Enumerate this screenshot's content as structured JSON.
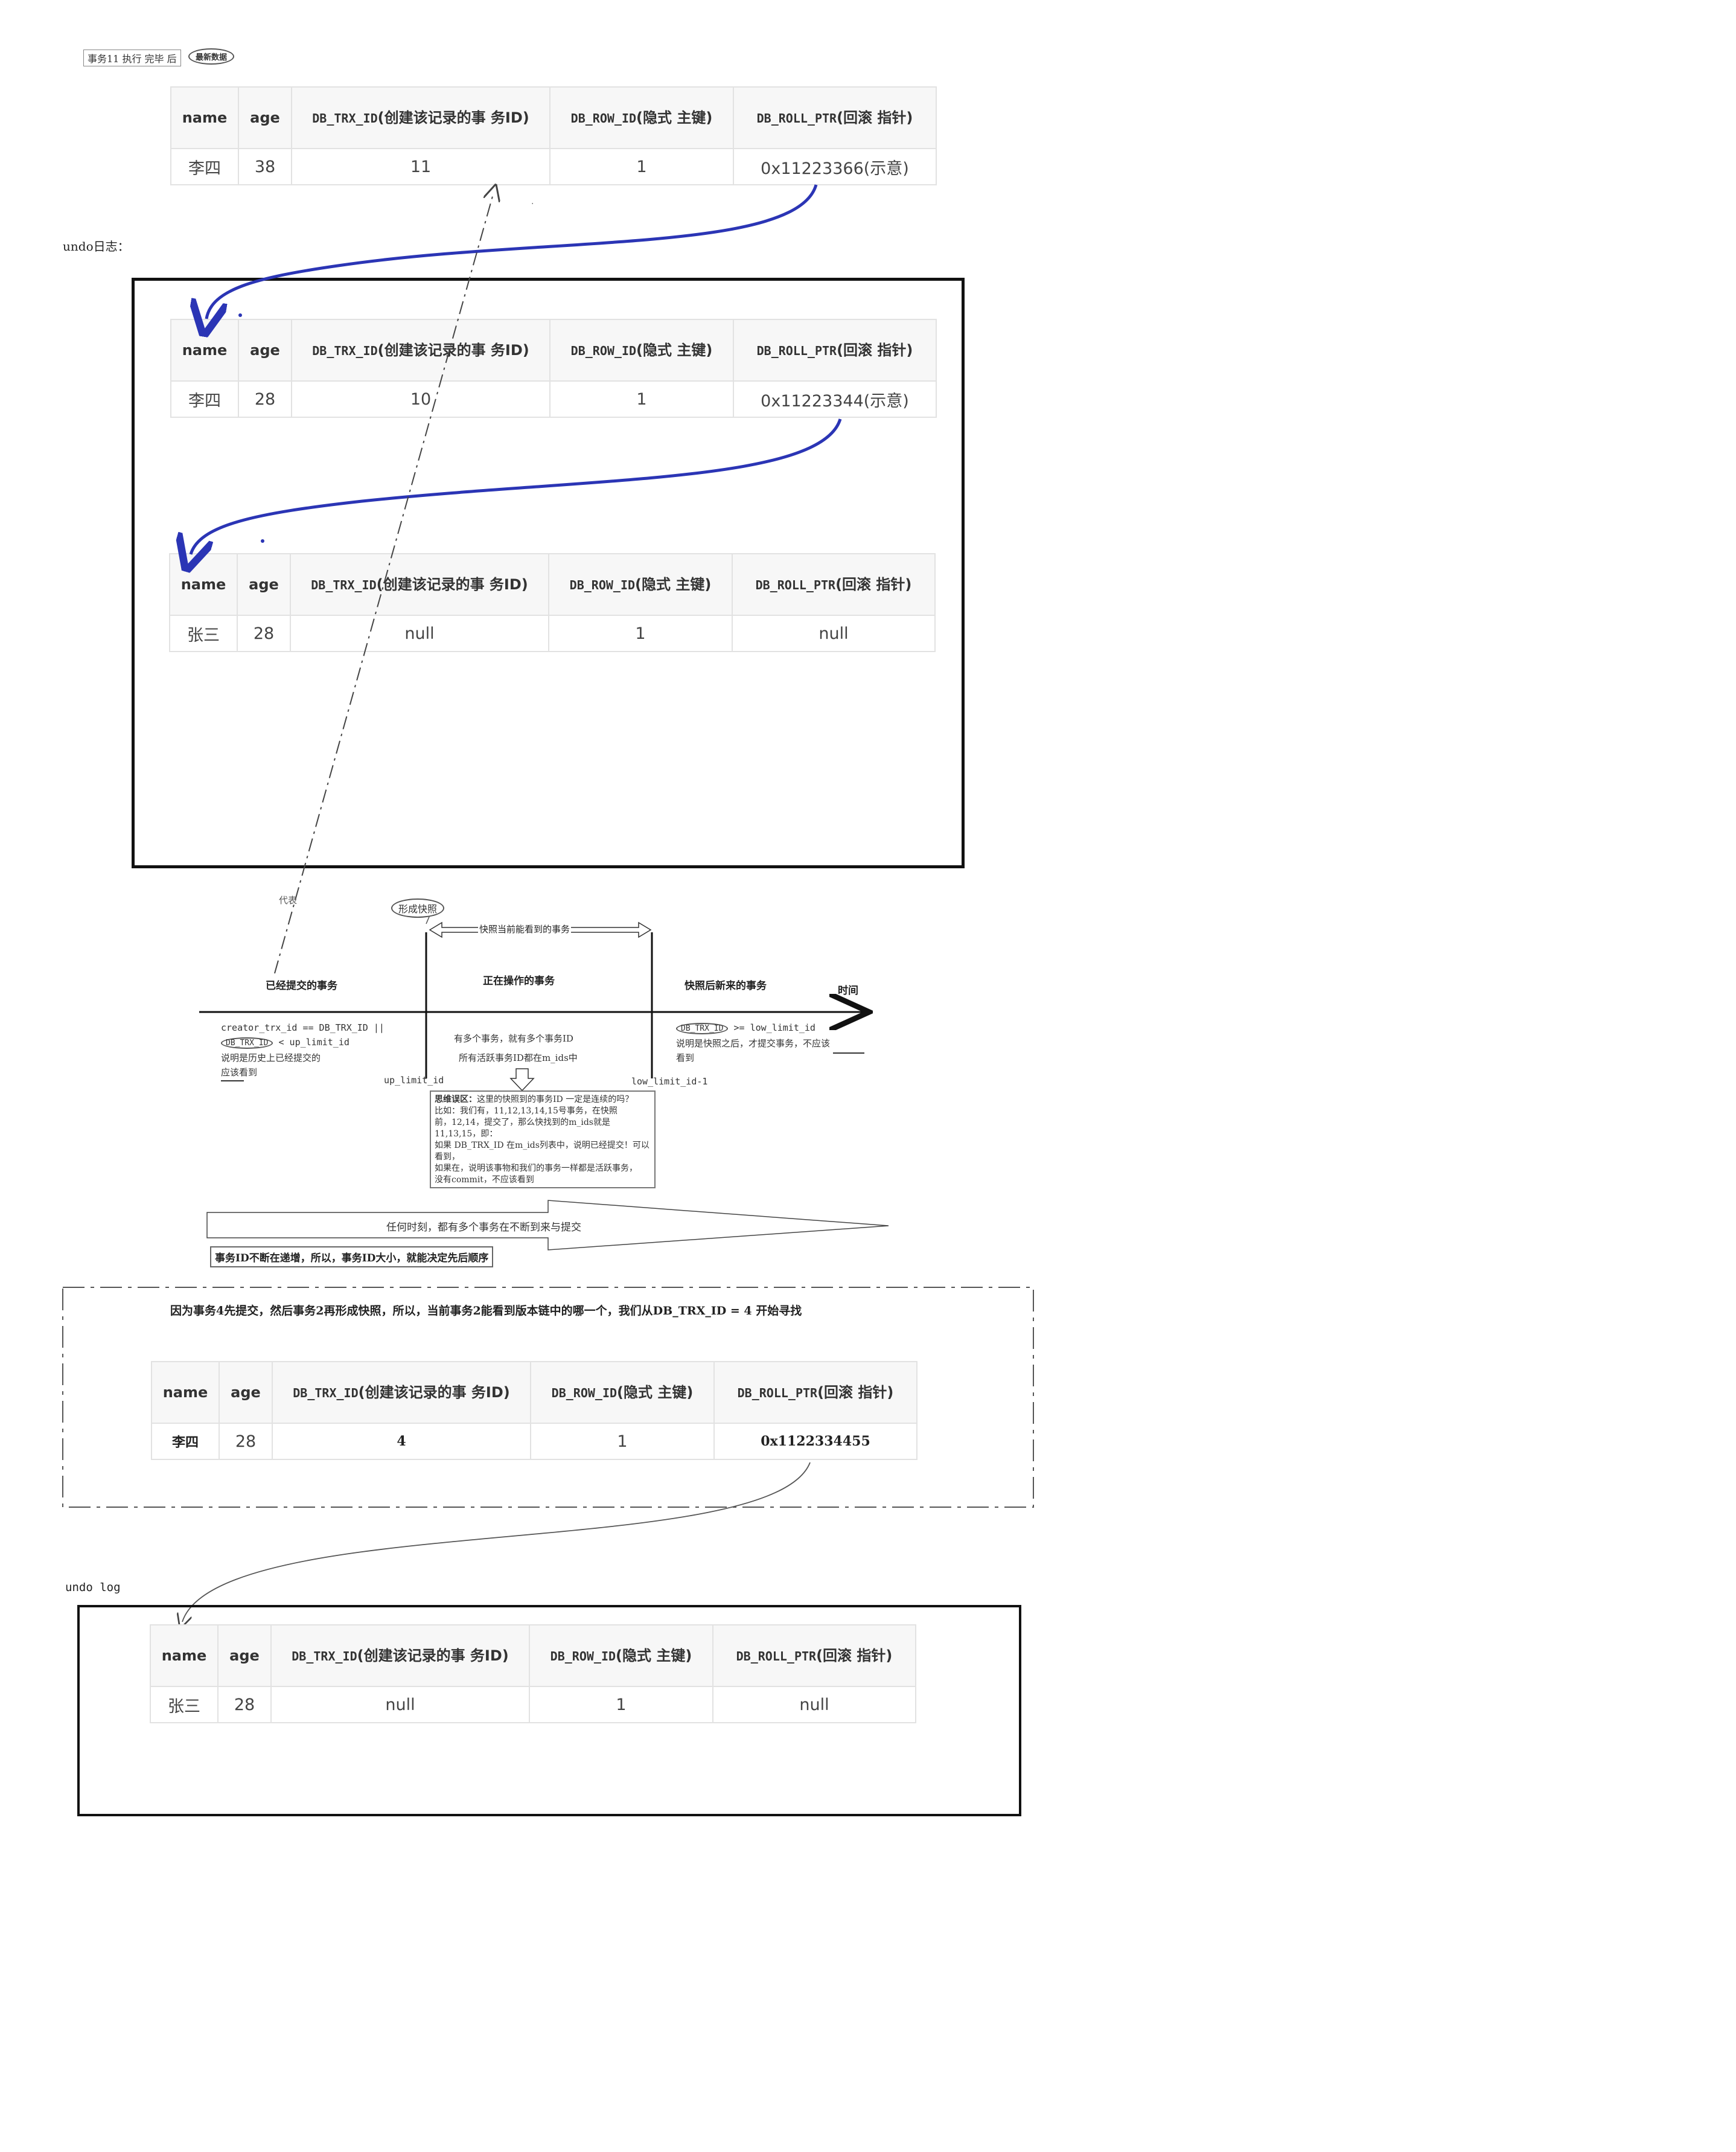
{
  "top_caption": {
    "text": "事务11 执行 完毕 后",
    "badge": "最新数据"
  },
  "columns": {
    "name": "name",
    "age": "age",
    "trx_code": "DB_TRX_ID",
    "trx_desc": "(创建该记录的事 务ID)",
    "row_code": "DB_ROW_ID",
    "row_desc": "(隐式 主键)",
    "roll_code": "DB_ROLL_PTR",
    "roll_desc": "(回滚 指针)"
  },
  "table1": {
    "name": "李四",
    "age": "38",
    "trx": "11",
    "row": "1",
    "roll": "0x11223366(示意)"
  },
  "undo_label_1": "undo日志：",
  "table2": {
    "name": "李四",
    "age": "28",
    "trx": "10",
    "row": "1",
    "roll": "0x11223344(示意)"
  },
  "table3": {
    "name": "张三",
    "age": "28",
    "trx": "null",
    "row": "1",
    "roll": "null"
  },
  "timeline": {
    "represent": "代表",
    "snapshot_bubble": "形成快照",
    "snapshot_range": "快照当前能看到的事务",
    "committed": "已经提交的事务",
    "active": "正在操作的事务",
    "future": "快照后新来的事务",
    "time": "时间",
    "left_line1": "creator_trx_id == DB_TRX_ID ||",
    "left_oval": "DB_TRX_ID",
    "left_line2": "< up_limit_id",
    "left_line3": "说明是历史上已经提交的",
    "left_line4": "应该看到",
    "mid_line1": "有多个事务，就有多个事务ID",
    "mid_line2": "所有活跃事务ID都在m_ids中",
    "up_limit": "up_limit_id",
    "low_limit": "low_limit_id-1",
    "right_oval": "DB_TRX_ID",
    "right_line1": ">= low_limit_id",
    "right_line2": "说明是快照之后，才提交事务，不应该",
    "right_line3": "看到"
  },
  "thinking_note": {
    "title": "思维误区：",
    "l1": "这里的快照到的事务ID 一定是连续的吗？",
    "l2": "比如：我们有，11,12,13,14,15号事务，在快照",
    "l3": "前，12,14，提交了，那么快找到的m_ids就是",
    "l4": "11,13,15，即：",
    "l5": "如果 DB_TRX_ID 在m_ids列表中，说明已经提交！可以",
    "l6": "看到，",
    "l7": "如果在，说明该事物和我们的事务一样都是活跃事务，",
    "l8": "没有commit，不应该看到"
  },
  "big_arrow_text": "任何时刻，都有多个事务在不断到来与提交",
  "increment_note": "事务ID不断在递增，所以，事务ID大小，就能决定先后顺序",
  "section2_title": "因为事务4先提交，然后事务2再形成快照，所以，当前事务2能看到版本链中的哪一个，我们从DB_TRX_ID = 4 开始寻找",
  "table4": {
    "name": "李四",
    "age": "28",
    "trx": "4",
    "row": "1",
    "roll": "0x1122334455"
  },
  "undo_label_2": "undo log",
  "table5": {
    "name": "张三",
    "age": "28",
    "trx": "null",
    "row": "1",
    "roll": "null"
  },
  "colors": {
    "arrow_blue": "#2b35b5",
    "border": "#111111"
  }
}
